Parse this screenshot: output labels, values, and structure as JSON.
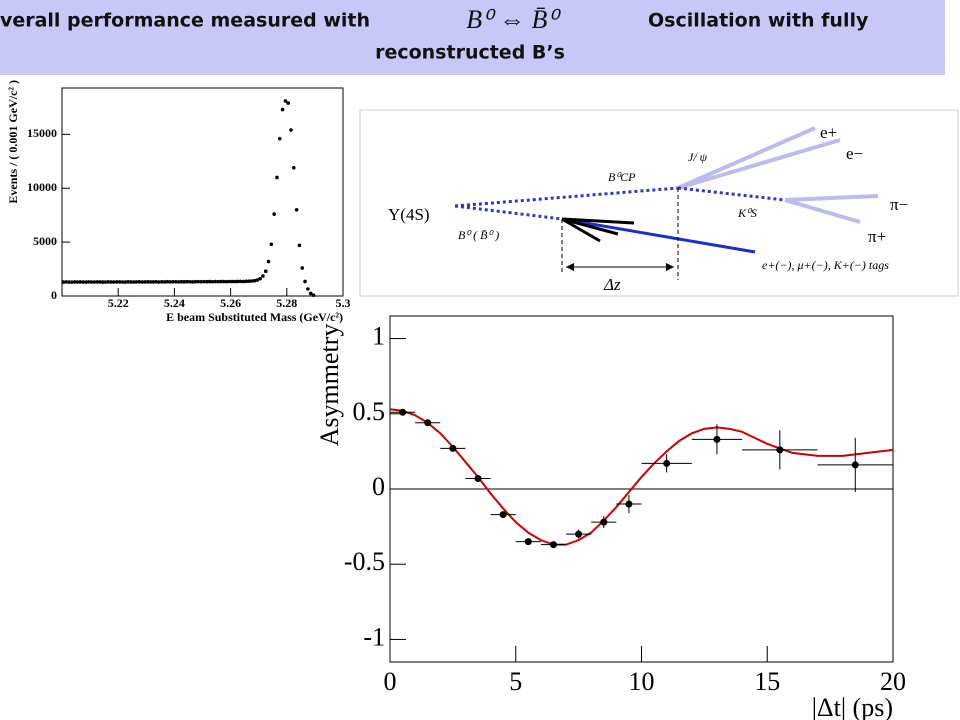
{
  "title": {
    "lead": "Overall performance measured with",
    "formula": "B⁰ ⇔ B̄⁰",
    "tail": "Oscillation with fully",
    "line2": "reconstructed B’s"
  },
  "diagram": {
    "upsilon": "Υ(4S)",
    "b_tag": "B⁰ ( B̄⁰ )",
    "b_cp": "B⁰CP",
    "jpsi": "J/ ψ",
    "e_plus": "e+",
    "e_minus": "e−",
    "kshort": "K⁰S",
    "pi_minus": "π−",
    "pi_plus": "π+",
    "dz": "Δz",
    "tags": "e+(−),  μ+(−),  K+(−)  tags"
  },
  "chart_data": [
    {
      "type": "scatter",
      "xlabel": "E  beam Substituted Mass (GeV/c²)",
      "ylabel": "Events / ( 0.001 GeV/c² )",
      "color": "#000000",
      "x": [
        5.2005,
        5.2015,
        5.2025,
        5.2035,
        5.2045,
        5.2055,
        5.2065,
        5.2075,
        5.2085,
        5.2095,
        5.2105,
        5.2115,
        5.2125,
        5.2135,
        5.2145,
        5.2155,
        5.2165,
        5.2175,
        5.2185,
        5.2195,
        5.2205,
        5.2215,
        5.2225,
        5.2235,
        5.2245,
        5.2255,
        5.2265,
        5.2275,
        5.2285,
        5.2295,
        5.2305,
        5.2315,
        5.2325,
        5.2335,
        5.2345,
        5.2355,
        5.2365,
        5.2375,
        5.2385,
        5.2395,
        5.2405,
        5.2415,
        5.2425,
        5.2435,
        5.2445,
        5.2455,
        5.2465,
        5.2475,
        5.2485,
        5.2495,
        5.2505,
        5.2515,
        5.2525,
        5.2535,
        5.2545,
        5.2555,
        5.2565,
        5.2575,
        5.2585,
        5.2595,
        5.2605,
        5.2615,
        5.2625,
        5.2635,
        5.2645,
        5.2655,
        5.2665,
        5.2675,
        5.2685,
        5.2695,
        5.2705,
        5.2715,
        5.2725,
        5.2735,
        5.2745,
        5.2755,
        5.2765,
        5.2775,
        5.2785,
        5.2795,
        5.2805,
        5.2815,
        5.2825,
        5.2835,
        5.2845,
        5.2855,
        5.2865,
        5.2875,
        5.2885,
        5.2895
      ],
      "values": [
        1290,
        1310,
        1300,
        1280,
        1305,
        1295,
        1310,
        1300,
        1290,
        1305,
        1300,
        1295,
        1310,
        1305,
        1290,
        1300,
        1315,
        1300,
        1295,
        1310,
        1305,
        1300,
        1290,
        1315,
        1310,
        1300,
        1305,
        1320,
        1300,
        1310,
        1315,
        1305,
        1310,
        1320,
        1300,
        1315,
        1310,
        1325,
        1310,
        1320,
        1320,
        1310,
        1325,
        1315,
        1330,
        1320,
        1310,
        1325,
        1330,
        1320,
        1330,
        1325,
        1335,
        1320,
        1340,
        1330,
        1335,
        1345,
        1330,
        1340,
        1345,
        1340,
        1350,
        1355,
        1345,
        1360,
        1370,
        1390,
        1420,
        1480,
        1600,
        1850,
        2300,
        3200,
        4800,
        7600,
        11000,
        14600,
        17300,
        18100,
        17900,
        15400,
        11900,
        8000,
        4700,
        2600,
        1350,
        650,
        240,
        80
      ],
      "xlim": [
        5.2,
        5.3
      ],
      "xticks": [
        5.22,
        5.24,
        5.26,
        5.28,
        5.3
      ],
      "ylim": [
        0,
        19300
      ],
      "yticks": [
        0,
        5000,
        10000,
        15000
      ]
    },
    {
      "type": "errorbar",
      "xlabel": "|Δt| (ps)",
      "ylabel": "Asymmetry",
      "color": "#000000",
      "x": [
        0.5,
        1.5,
        2.5,
        3.5,
        4.5,
        5.5,
        6.5,
        7.5,
        8.5,
        9.5,
        11,
        13,
        15.5,
        18.5
      ],
      "values": [
        0.51,
        0.44,
        0.27,
        0.07,
        -0.17,
        -0.35,
        -0.37,
        -0.3,
        -0.22,
        -0.1,
        0.17,
        0.33,
        0.26,
        0.16
      ],
      "xerr": [
        0.5,
        0.5,
        0.5,
        0.5,
        0.5,
        0.5,
        0.5,
        0.5,
        0.5,
        0.5,
        1,
        1,
        1.5,
        1.5
      ],
      "yerr": [
        0.02,
        0.02,
        0.02,
        0.02,
        0.02,
        0.02,
        0.02,
        0.03,
        0.04,
        0.06,
        0.06,
        0.1,
        0.13,
        0.18
      ],
      "fit": {
        "color": "#cc0000",
        "x": [
          0,
          0.5,
          1,
          1.5,
          2,
          2.5,
          3,
          3.5,
          4,
          4.5,
          5,
          5.5,
          6,
          6.5,
          7,
          7.5,
          8,
          8.5,
          9,
          9.5,
          10,
          10.5,
          11,
          11.5,
          12,
          12.5,
          13,
          13.5,
          14,
          14.5,
          15,
          15.5,
          16,
          16.5,
          17,
          17.5,
          18,
          18.5,
          19,
          19.5,
          20
        ],
        "values": [
          0.53,
          0.52,
          0.49,
          0.44,
          0.37,
          0.28,
          0.18,
          0.08,
          -0.03,
          -0.13,
          -0.22,
          -0.29,
          -0.34,
          -0.37,
          -0.37,
          -0.34,
          -0.29,
          -0.21,
          -0.12,
          -0.02,
          0.08,
          0.17,
          0.25,
          0.32,
          0.37,
          0.4,
          0.41,
          0.4,
          0.38,
          0.34,
          0.3,
          0.27,
          0.24,
          0.23,
          0.22,
          0.22,
          0.22,
          0.23,
          0.24,
          0.25,
          0.26
        ]
      },
      "xlim": [
        0,
        20
      ],
      "xticks": [
        0,
        5,
        10,
        15,
        20
      ],
      "ylim": [
        -1.15,
        1.15
      ],
      "yticks": [
        -1,
        -0.5,
        0,
        0.5,
        1
      ]
    }
  ]
}
